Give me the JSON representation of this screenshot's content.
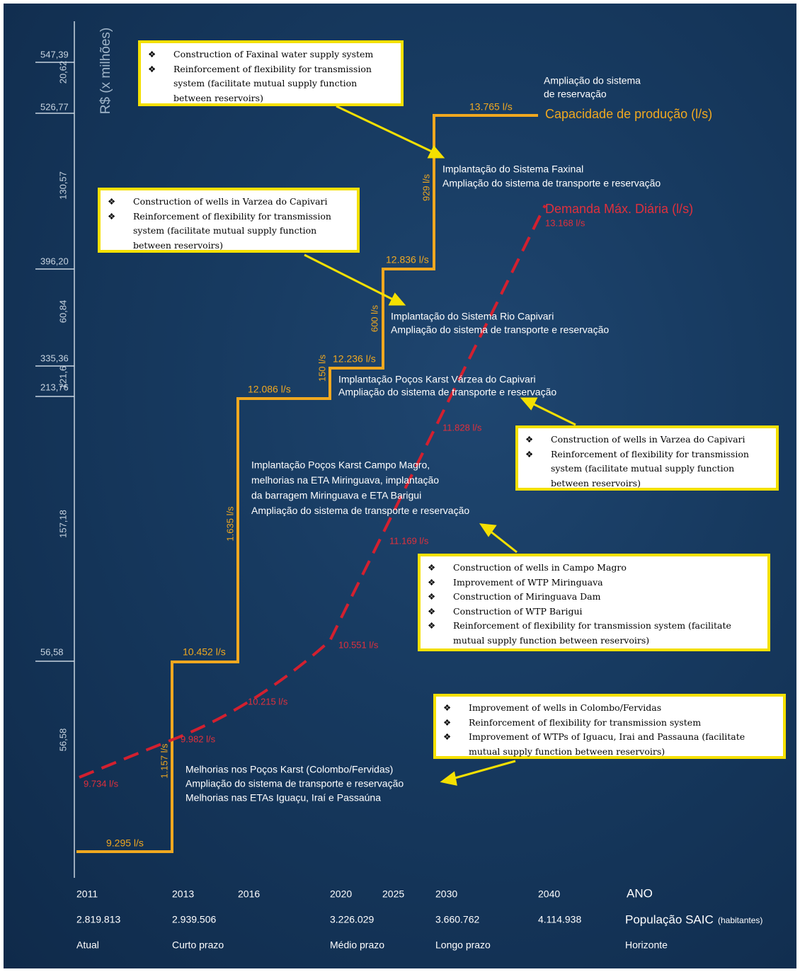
{
  "axis": {
    "title": "R$ (x milhões)",
    "levels": [
      "547,39",
      "526,77",
      "396,20",
      "335,36",
      "213,76",
      "56,58"
    ],
    "increments": [
      "20,62",
      "130,57",
      "60,84",
      "121,6",
      "157,18",
      "56,58"
    ]
  },
  "timeline": {
    "years": [
      "2011",
      "2013",
      "2016",
      "2020",
      "2025",
      "2030",
      "2040"
    ],
    "year_label": "ANO",
    "population": [
      "2.819.813",
      "2.939.506",
      "3.226.029",
      "3.660.762",
      "4.114.938"
    ],
    "population_label": "População SAIC",
    "population_unit": "(habitantes)",
    "phases": [
      "Atual",
      "Curto prazo",
      "Médio prazo",
      "Longo prazo",
      "Horizonte"
    ]
  },
  "capacity": {
    "title": "Capacidade de produção (l/s)",
    "note": [
      "Ampliação do sistema",
      "de reservação"
    ],
    "levels": [
      "9.295 l/s",
      "10.452 l/s",
      "12.086 l/s",
      "12.236 l/s",
      "12.836 l/s",
      "13.765 l/s"
    ],
    "steps": [
      "1.157 l/s",
      "1.635 l/s",
      "150 l/s",
      "600 l/s",
      "929 l/s"
    ]
  },
  "demand": {
    "title": "Demanda Máx. Diária (l/s)",
    "points": [
      "9.734 l/s",
      "9.982 l/s",
      "10.215 l/s",
      "10.551 l/s",
      "11.169 l/s",
      "11.828 l/s",
      "13.168 l/s"
    ]
  },
  "projects": [
    [
      "Implantação do Sistema Faxinal",
      "Ampliação do sistema de transporte e reservação"
    ],
    [
      "Implantação do Sistema Rio Capivari",
      "Ampliação do sistema de transporte e reservação"
    ],
    [
      "Implantação Poços Karst Várzea do Capivari",
      "Ampliação do sistema de transporte e reservação"
    ],
    [
      "Implantação Poços Karst Campo Magro,",
      "melhorias na ETA Miringuava, implantação",
      "da barragem Miringuava  e ETA Barigui",
      "Ampliação do sistema de transporte e reservação"
    ],
    [
      "Melhorias nos Poços Karst (Colombo/Fervidas)",
      "Ampliação do sistema de transporte e reservação",
      "Melhorias nas ETAs Iguaçu, Iraí e Passaúna"
    ]
  ],
  "callouts": [
    [
      "Construction of Faxinal water supply system",
      "Reinforcement of flexibility for transmission system (facilitate mutual supply function between reservoirs)"
    ],
    [
      "Construction of wells in Varzea do Capivari",
      "Reinforcement of flexibility for transmission system (facilitate mutual supply function between reservoirs)"
    ],
    [
      "Construction of wells in Varzea do Capivari",
      "Reinforcement of flexibility for transmission system (facilitate mutual supply function between reservoirs)"
    ],
    [
      "Construction of wells in Campo Magro",
      "Improvement of WTP Miringuava",
      "Construction of Miringuava Dam",
      "Construction of WTP Barigui",
      "Reinforcement of flexibility for transmission system (facilitate mutual supply function between reservoirs)"
    ],
    [
      "Improvement of wells in Colombo/Fervidas",
      "Reinforcement of flexibility for transmission system",
      "Improvement of WTPs of Iguacu, Irai and Passauna (facilitate mutual supply function between reservoirs)"
    ]
  ]
}
